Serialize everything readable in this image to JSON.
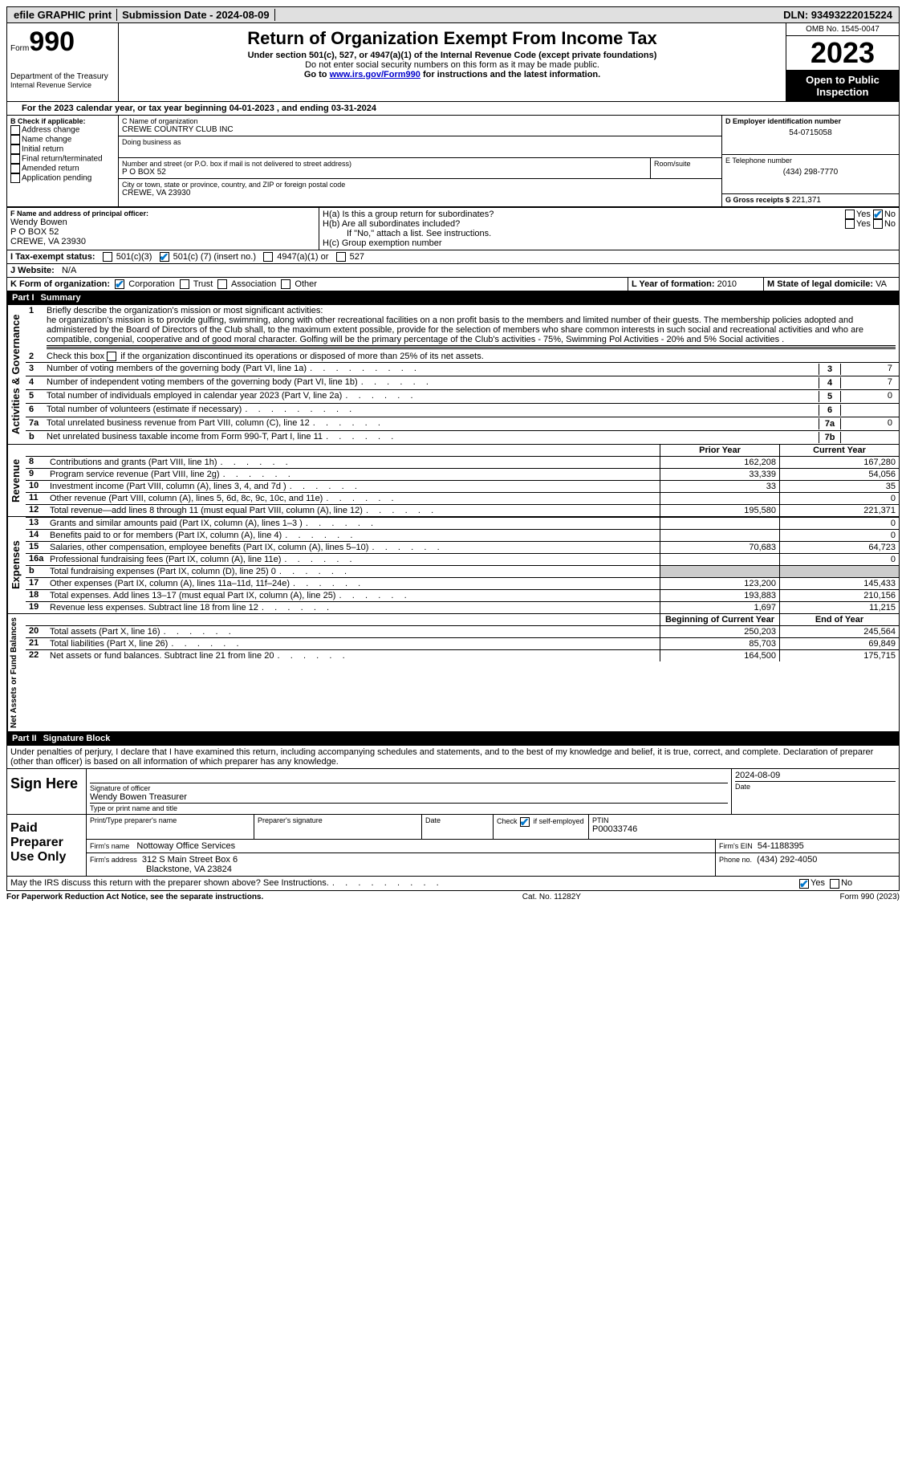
{
  "topbar": {
    "efile": "efile GRAPHIC print",
    "submission": "Submission Date - 2024-08-09",
    "dln": "DLN: 93493222015224"
  },
  "header": {
    "form_label": "Form",
    "form_num": "990",
    "dept1": "Department of the Treasury",
    "dept2": "Internal Revenue Service",
    "title": "Return of Organization Exempt From Income Tax",
    "sub": "Under section 501(c), 527, or 4947(a)(1) of the Internal Revenue Code (except private foundations)",
    "sub2": "Do not enter social security numbers on this form as it may be made public.",
    "goto": "Go to ",
    "link": "www.irs.gov/Form990",
    "goto2": " for instructions and the latest information.",
    "omb": "OMB No. 1545-0047",
    "year": "2023",
    "open": "Open to Public Inspection"
  },
  "lineA": "For the 2023 calendar year, or tax year beginning 04-01-2023    , and ending 03-31-2024",
  "sectionB": {
    "label": "B Check if applicable:",
    "opts": [
      "Address change",
      "Name change",
      "Initial return",
      "Final return/terminated",
      "Amended return",
      "Application pending"
    ]
  },
  "sectionC": {
    "name_label": "C Name of organization",
    "name": "CREWE COUNTRY CLUB INC",
    "dba": "Doing business as",
    "street_label": "Number and street (or P.O. box if mail is not delivered to street address)",
    "room_label": "Room/suite",
    "street": "P O BOX 52",
    "city_label": "City or town, state or province, country, and ZIP or foreign postal code",
    "city": "CREWE, VA  23930"
  },
  "sectionD": {
    "label": "D Employer identification number",
    "ein": "54-0715058"
  },
  "sectionE": {
    "label": "E Telephone number",
    "phone": "(434) 298-7770"
  },
  "sectionG": {
    "label": "G Gross receipts $",
    "amount": "221,371"
  },
  "sectionF": {
    "label": "F  Name and address of principal officer:",
    "name": "Wendy Bowen",
    "addr1": "P O BOX 52",
    "addr2": "CREWE, VA  23930"
  },
  "sectionH": {
    "a": "H(a)  Is this a group return for subordinates?",
    "b": "H(b)  Are all subordinates included?",
    "b2": "If \"No,\" attach a list. See instructions.",
    "c": "H(c)  Group exemption number",
    "yes": "Yes",
    "no": "No"
  },
  "sectionI": {
    "label": "I   Tax-exempt status:",
    "o1": "501(c)(3)",
    "o2": "501(c) (",
    "o2n": "7",
    "o2b": ") (insert no.)",
    "o3": "4947(a)(1) or",
    "o4": "527"
  },
  "sectionJ": {
    "label": "J   Website:",
    "val": "N/A"
  },
  "sectionK": {
    "label": "K Form of organization:",
    "o1": "Corporation",
    "o2": "Trust",
    "o3": "Association",
    "o4": "Other"
  },
  "sectionL": {
    "label": "L Year of formation:",
    "val": "2010"
  },
  "sectionM": {
    "label": "M State of legal domicile:",
    "val": "VA"
  },
  "part1": {
    "label": "Part I",
    "title": "Summary"
  },
  "summary": {
    "l1_label": "Briefly describe the organization's mission or most significant activities:",
    "l1_text": "he organization's mission is to provide gulfing, swimming, along with other recreational facilities on a non profit basis to the members and limited number of their guests. The membership policies adopted and administered by the Board of Directors of the Club shall, to the maximum extent possible, provide for the selection of members who share common interests in such social and recreational activities and who are compatible, congenial, cooperative and of good moral character. Golfing will be the primary percentage of the Club's activities - 75%, Swimming Pol Activities - 20% and 5% Social activities .",
    "l2": "Check this box",
    "l2b": "if the organization discontinued its operations or disposed of more than 25% of its net assets.",
    "l3": "Number of voting members of the governing body (Part VI, line 1a)",
    "l4": "Number of independent voting members of the governing body (Part VI, line 1b)",
    "l5": "Total number of individuals employed in calendar year 2023 (Part V, line 2a)",
    "l6": "Total number of volunteers (estimate if necessary)",
    "l7a": "Total unrelated business revenue from Part VIII, column (C), line 12",
    "l7b": "Net unrelated business taxable income from Form 990-T, Part I, line 11",
    "v3": "7",
    "v4": "7",
    "v5": "0",
    "v6": "",
    "v7a": "0",
    "v7b": ""
  },
  "cols": {
    "prior": "Prior Year",
    "curr": "Current Year",
    "begin": "Beginning of Current Year",
    "end": "End of Year"
  },
  "sidelabels": {
    "gov": "Activities & Governance",
    "rev": "Revenue",
    "exp": "Expenses",
    "net": "Net Assets or Fund Balances"
  },
  "revenue": [
    {
      "n": "8",
      "t": "Contributions and grants (Part VIII, line 1h)",
      "p": "162,208",
      "c": "167,280"
    },
    {
      "n": "9",
      "t": "Program service revenue (Part VIII, line 2g)",
      "p": "33,339",
      "c": "54,056"
    },
    {
      "n": "10",
      "t": "Investment income (Part VIII, column (A), lines 3, 4, and 7d )",
      "p": "33",
      "c": "35"
    },
    {
      "n": "11",
      "t": "Other revenue (Part VIII, column (A), lines 5, 6d, 8c, 9c, 10c, and 11e)",
      "p": "",
      "c": "0"
    },
    {
      "n": "12",
      "t": "Total revenue—add lines 8 through 11 (must equal Part VIII, column (A), line 12)",
      "p": "195,580",
      "c": "221,371"
    }
  ],
  "expenses": [
    {
      "n": "13",
      "t": "Grants and similar amounts paid (Part IX, column (A), lines 1–3 )",
      "p": "",
      "c": "0"
    },
    {
      "n": "14",
      "t": "Benefits paid to or for members (Part IX, column (A), line 4)",
      "p": "",
      "c": "0"
    },
    {
      "n": "15",
      "t": "Salaries, other compensation, employee benefits (Part IX, column (A), lines 5–10)",
      "p": "70,683",
      "c": "64,723"
    },
    {
      "n": "16a",
      "t": "Professional fundraising fees (Part IX, column (A), line 11e)",
      "p": "",
      "c": "0"
    },
    {
      "n": "b",
      "t": "Total fundraising expenses (Part IX, column (D), line 25) 0",
      "p": "SHADE",
      "c": "SHADE"
    },
    {
      "n": "17",
      "t": "Other expenses (Part IX, column (A), lines 11a–11d, 11f–24e)",
      "p": "123,200",
      "c": "145,433"
    },
    {
      "n": "18",
      "t": "Total expenses. Add lines 13–17 (must equal Part IX, column (A), line 25)",
      "p": "193,883",
      "c": "210,156"
    },
    {
      "n": "19",
      "t": "Revenue less expenses. Subtract line 18 from line 12",
      "p": "1,697",
      "c": "11,215"
    }
  ],
  "netassets": [
    {
      "n": "20",
      "t": "Total assets (Part X, line 16)",
      "p": "250,203",
      "c": "245,564"
    },
    {
      "n": "21",
      "t": "Total liabilities (Part X, line 26)",
      "p": "85,703",
      "c": "69,849"
    },
    {
      "n": "22",
      "t": "Net assets or fund balances. Subtract line 21 from line 20",
      "p": "164,500",
      "c": "175,715"
    }
  ],
  "part2": {
    "label": "Part II",
    "title": "Signature Block"
  },
  "sig": {
    "decl": "Under penalties of perjury, I declare that I have examined this return, including accompanying schedules and statements, and to the best of my knowledge and belief, it is true, correct, and complete. Declaration of preparer (other than officer) is based on all information of which preparer has any knowledge.",
    "sign_here": "Sign Here",
    "sig_officer": "Signature of officer",
    "date": "Date",
    "date_val": "2024-08-09",
    "name_title": "Wendy Bowen Treasurer",
    "type_name": "Type or print name and title",
    "paid": "Paid Preparer Use Only",
    "print_name": "Print/Type preparer's name",
    "prep_sig": "Preparer's signature",
    "check_if": "Check",
    "check_if2": "if self-employed",
    "ptin_label": "PTIN",
    "ptin": "P00033746",
    "firm_name_label": "Firm's name",
    "firm_name": "Nottoway Office Services",
    "firm_ein_label": "Firm's EIN",
    "firm_ein": "54-1188395",
    "firm_addr_label": "Firm's address",
    "firm_addr": "312 S Main Street Box 6",
    "firm_addr2": "Blackstone, VA  23824",
    "phone_label": "Phone no.",
    "phone": "(434) 292-4050",
    "discuss": "May the IRS discuss this return with the preparer shown above? See Instructions.",
    "yes": "Yes",
    "no": "No"
  },
  "footer": {
    "paperwork": "For Paperwork Reduction Act Notice, see the separate instructions.",
    "cat": "Cat. No. 11282Y",
    "form": "Form 990 (2023)"
  }
}
